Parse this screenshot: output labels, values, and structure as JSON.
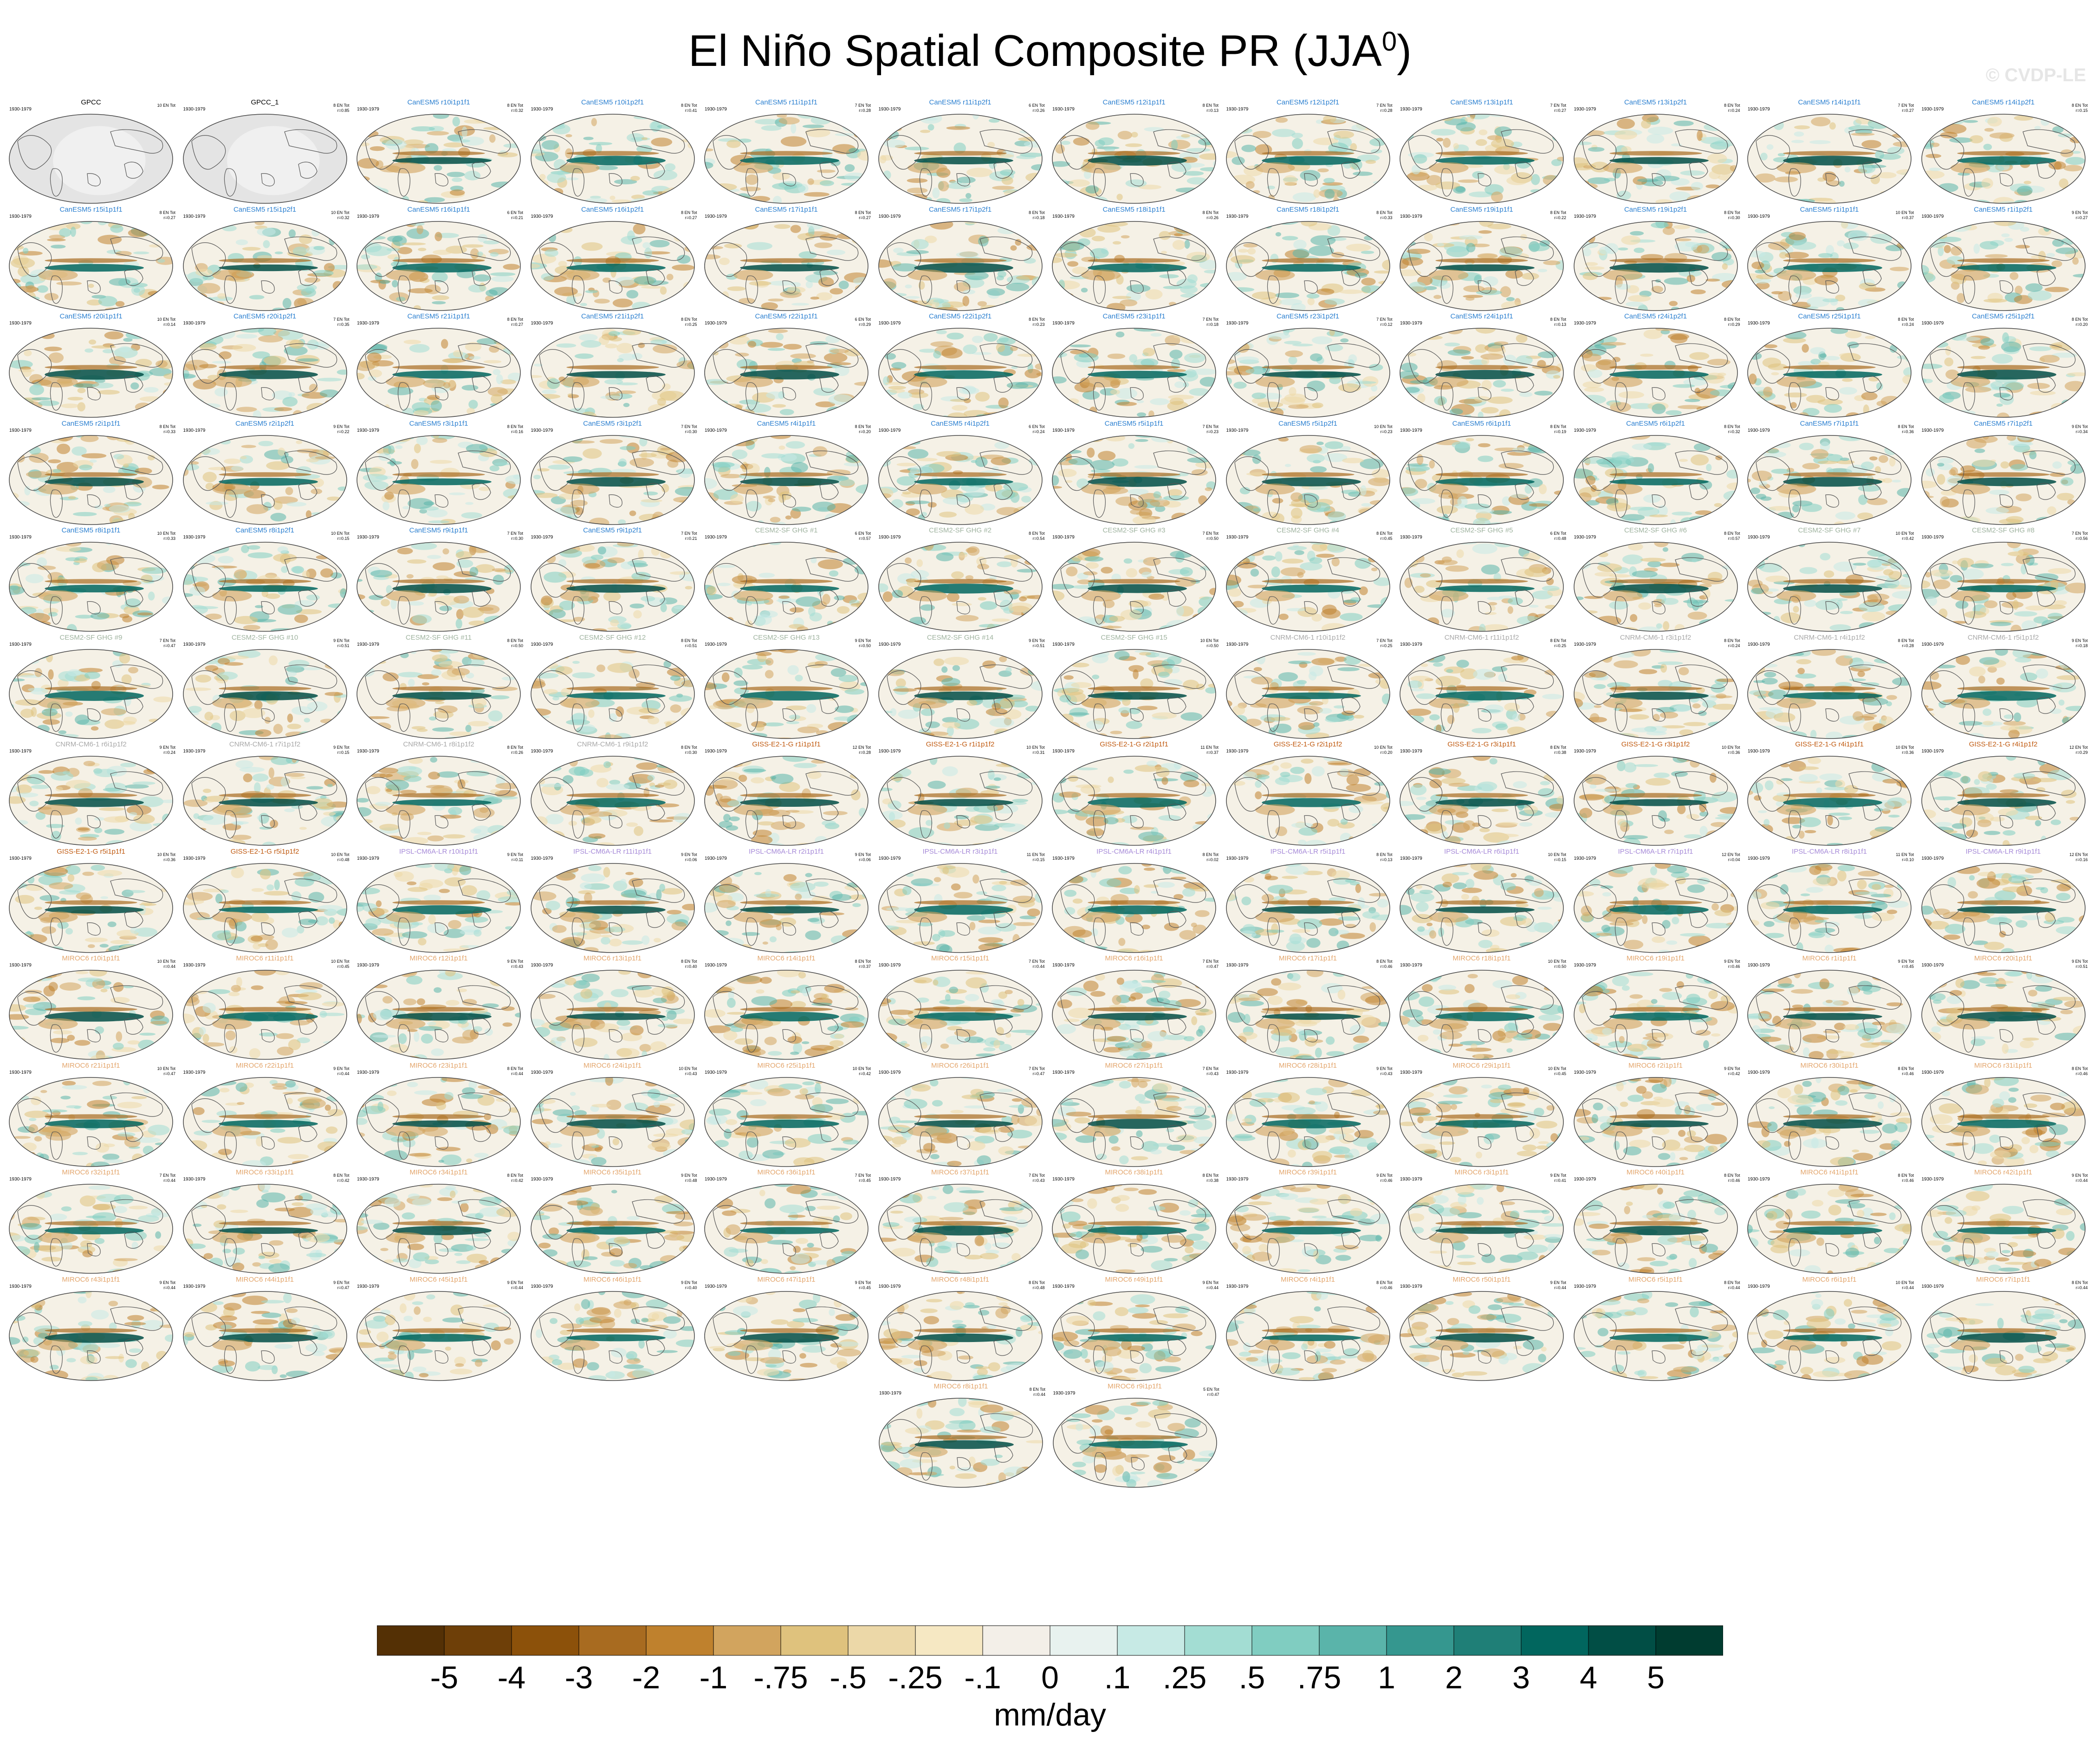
{
  "title": {
    "main": "El Niño Spatial Composite PR (JJA",
    "sup": "0",
    "close": ")"
  },
  "watermark": "© CVDP-LE",
  "period": "1930-1979",
  "colors": {
    "obs_title": "#000000",
    "CanESM5": "#2a7fd0",
    "CESM2-SF GHG": "#9fb39f",
    "CNRM-CM6-1": "#a8a8a8",
    "GISS-E2-1-G": "#c05a10",
    "IPSL-CM6A-LR": "#a68ad8",
    "MIROC6": "#e3a56b",
    "land_obs": "#e4e4e4",
    "ocean_bg": "#f5f1e6"
  },
  "panels": [
    {
      "title": "GPCC",
      "group": "obs",
      "stats": "10 EN Tot",
      "r": ""
    },
    {
      "title": "GPCC_1",
      "group": "obs",
      "stats": "8 EN Tot",
      "r": "r=0.85"
    },
    {
      "title": "CanESM5 r10i1p1f1",
      "group": "CanESM5",
      "stats": "8 EN Tot",
      "r": "r=0.32"
    },
    {
      "title": "CanESM5 r10i1p2f1",
      "group": "CanESM5",
      "stats": "8 EN Tot",
      "r": "r=0.41"
    },
    {
      "title": "CanESM5 r11i1p1f1",
      "group": "CanESM5",
      "stats": "7 EN Tot",
      "r": "r=0.28"
    },
    {
      "title": "CanESM5 r11i1p2f1",
      "group": "CanESM5",
      "stats": "6 EN Tot",
      "r": "r=0.26"
    },
    {
      "title": "CanESM5 r12i1p1f1",
      "group": "CanESM5",
      "stats": "8 EN Tot",
      "r": "r=0.13"
    },
    {
      "title": "CanESM5 r12i1p2f1",
      "group": "CanESM5",
      "stats": "7 EN Tot",
      "r": "r=0.28"
    },
    {
      "title": "CanESM5 r13i1p1f1",
      "group": "CanESM5",
      "stats": "7 EN Tot",
      "r": "r=0.27"
    },
    {
      "title": "CanESM5 r13i1p2f1",
      "group": "CanESM5",
      "stats": "8 EN Tot",
      "r": "r=0.24"
    },
    {
      "title": "CanESM5 r14i1p1f1",
      "group": "CanESM5",
      "stats": "7 EN Tot",
      "r": "r=0.27"
    },
    {
      "title": "CanESM5 r14i1p2f1",
      "group": "CanESM5",
      "stats": "8 EN Tot",
      "r": "r=0.15"
    },
    {
      "title": "CanESM5 r15i1p1f1",
      "group": "CanESM5",
      "stats": "8 EN Tot",
      "r": "r=0.27"
    },
    {
      "title": "CanESM5 r15i1p2f1",
      "group": "CanESM5",
      "stats": "10 EN Tot",
      "r": "r=0.32"
    },
    {
      "title": "CanESM5 r16i1p1f1",
      "group": "CanESM5",
      "stats": "6 EN Tot",
      "r": "r=0.21"
    },
    {
      "title": "CanESM5 r16i1p2f1",
      "group": "CanESM5",
      "stats": "8 EN Tot",
      "r": "r=0.27"
    },
    {
      "title": "CanESM5 r17i1p1f1",
      "group": "CanESM5",
      "stats": "8 EN Tot",
      "r": "r=0.27"
    },
    {
      "title": "CanESM5 r17i1p2f1",
      "group": "CanESM5",
      "stats": "8 EN Tot",
      "r": "r=0.18"
    },
    {
      "title": "CanESM5 r18i1p1f1",
      "group": "CanESM5",
      "stats": "8 EN Tot",
      "r": "r=0.26"
    },
    {
      "title": "CanESM5 r18i1p2f1",
      "group": "CanESM5",
      "stats": "8 EN Tot",
      "r": "r=0.33"
    },
    {
      "title": "CanESM5 r19i1p1f1",
      "group": "CanESM5",
      "stats": "8 EN Tot",
      "r": "r=0.22"
    },
    {
      "title": "CanESM5 r19i1p2f1",
      "group": "CanESM5",
      "stats": "8 EN Tot",
      "r": "r=0.30"
    },
    {
      "title": "CanESM5 r1i1p1f1",
      "group": "CanESM5",
      "stats": "10 EN Tot",
      "r": "r=0.37"
    },
    {
      "title": "CanESM5 r1i1p2f1",
      "group": "CanESM5",
      "stats": "9 EN Tot",
      "r": "r=0.27"
    },
    {
      "title": "CanESM5 r20i1p1f1",
      "group": "CanESM5",
      "stats": "10 EN Tot",
      "r": "r=0.14"
    },
    {
      "title": "CanESM5 r20i1p2f1",
      "group": "CanESM5",
      "stats": "7 EN Tot",
      "r": "r=0.35"
    },
    {
      "title": "CanESM5 r21i1p1f1",
      "group": "CanESM5",
      "stats": "8 EN Tot",
      "r": "r=0.27"
    },
    {
      "title": "CanESM5 r21i1p2f1",
      "group": "CanESM5",
      "stats": "8 EN Tot",
      "r": "r=0.25"
    },
    {
      "title": "CanESM5 r22i1p1f1",
      "group": "CanESM5",
      "stats": "6 EN Tot",
      "r": "r=0.29"
    },
    {
      "title": "CanESM5 r22i1p2f1",
      "group": "CanESM5",
      "stats": "8 EN Tot",
      "r": "r=0.23"
    },
    {
      "title": "CanESM5 r23i1p1f1",
      "group": "CanESM5",
      "stats": "7 EN Tot",
      "r": "r=0.18"
    },
    {
      "title": "CanESM5 r23i1p2f1",
      "group": "CanESM5",
      "stats": "7 EN Tot",
      "r": "r=0.12"
    },
    {
      "title": "CanESM5 r24i1p1f1",
      "group": "CanESM5",
      "stats": "8 EN Tot",
      "r": "r=0.13"
    },
    {
      "title": "CanESM5 r24i1p2f1",
      "group": "CanESM5",
      "stats": "8 EN Tot",
      "r": "r=0.29"
    },
    {
      "title": "CanESM5 r25i1p1f1",
      "group": "CanESM5",
      "stats": "8 EN Tot",
      "r": "r=0.24"
    },
    {
      "title": "CanESM5 r25i1p2f1",
      "group": "CanESM5",
      "stats": "8 EN Tot",
      "r": "r=0.20"
    },
    {
      "title": "CanESM5 r2i1p1f1",
      "group": "CanESM5",
      "stats": "8 EN Tot",
      "r": "r=0.33"
    },
    {
      "title": "CanESM5 r2i1p2f1",
      "group": "CanESM5",
      "stats": "9 EN Tot",
      "r": "r=0.22"
    },
    {
      "title": "CanESM5 r3i1p1f1",
      "group": "CanESM5",
      "stats": "8 EN Tot",
      "r": "r=0.16"
    },
    {
      "title": "CanESM5 r3i1p2f1",
      "group": "CanESM5",
      "stats": "7 EN Tot",
      "r": "r=0.30"
    },
    {
      "title": "CanESM5 r4i1p1f1",
      "group": "CanESM5",
      "stats": "8 EN Tot",
      "r": "r=0.20"
    },
    {
      "title": "CanESM5 r4i1p2f1",
      "group": "CanESM5",
      "stats": "6 EN Tot",
      "r": "r=0.24"
    },
    {
      "title": "CanESM5 r5i1p1f1",
      "group": "CanESM5",
      "stats": "7 EN Tot",
      "r": "r=0.23"
    },
    {
      "title": "CanESM5 r5i1p2f1",
      "group": "CanESM5",
      "stats": "10 EN Tot",
      "r": "r=0.23"
    },
    {
      "title": "CanESM5 r6i1p1f1",
      "group": "CanESM5",
      "stats": "8 EN Tot",
      "r": "r=0.19"
    },
    {
      "title": "CanESM5 r6i1p2f1",
      "group": "CanESM5",
      "stats": "8 EN Tot",
      "r": "r=0.32"
    },
    {
      "title": "CanESM5 r7i1p1f1",
      "group": "CanESM5",
      "stats": "8 EN Tot",
      "r": "r=0.36"
    },
    {
      "title": "CanESM5 r7i1p2f1",
      "group": "CanESM5",
      "stats": "9 EN Tot",
      "r": "r=0.34"
    },
    {
      "title": "CanESM5 r8i1p1f1",
      "group": "CanESM5",
      "stats": "10 EN Tot",
      "r": "r=0.33"
    },
    {
      "title": "CanESM5 r8i1p2f1",
      "group": "CanESM5",
      "stats": "10 EN Tot",
      "r": "r=0.15"
    },
    {
      "title": "CanESM5 r9i1p1f1",
      "group": "CanESM5",
      "stats": "7 EN Tot",
      "r": "r=0.30"
    },
    {
      "title": "CanESM5 r9i1p2f1",
      "group": "CanESM5",
      "stats": "7 EN Tot",
      "r": "r=0.21"
    },
    {
      "title": "CESM2-SF GHG #1",
      "group": "CESM2-SF GHG",
      "stats": "6 EN Tot",
      "r": "r=0.57"
    },
    {
      "title": "CESM2-SF GHG #2",
      "group": "CESM2-SF GHG",
      "stats": "8 EN Tot",
      "r": "r=0.54"
    },
    {
      "title": "CESM2-SF GHG #3",
      "group": "CESM2-SF GHG",
      "stats": "7 EN Tot",
      "r": "r=0.50"
    },
    {
      "title": "CESM2-SF GHG #4",
      "group": "CESM2-SF GHG",
      "stats": "8 EN Tot",
      "r": "r=0.45"
    },
    {
      "title": "CESM2-SF GHG #5",
      "group": "CESM2-SF GHG",
      "stats": "6 EN Tot",
      "r": "r=0.48"
    },
    {
      "title": "CESM2-SF GHG #6",
      "group": "CESM2-SF GHG",
      "stats": "8 EN Tot",
      "r": "r=0.57"
    },
    {
      "title": "CESM2-SF GHG #7",
      "group": "CESM2-SF GHG",
      "stats": "10 EN Tot",
      "r": "r=0.42"
    },
    {
      "title": "CESM2-SF GHG #8",
      "group": "CESM2-SF GHG",
      "stats": "7 EN Tot",
      "r": "r=0.56"
    },
    {
      "title": "CESM2-SF GHG #9",
      "group": "CESM2-SF GHG",
      "stats": "7 EN Tot",
      "r": "r=0.47"
    },
    {
      "title": "CESM2-SF GHG #10",
      "group": "CESM2-SF GHG",
      "stats": "9 EN Tot",
      "r": "r=0.51"
    },
    {
      "title": "CESM2-SF GHG #11",
      "group": "CESM2-SF GHG",
      "stats": "8 EN Tot",
      "r": "r=0.50"
    },
    {
      "title": "CESM2-SF GHG #12",
      "group": "CESM2-SF GHG",
      "stats": "8 EN Tot",
      "r": "r=0.51"
    },
    {
      "title": "CESM2-SF GHG #13",
      "group": "CESM2-SF GHG",
      "stats": "9 EN Tot",
      "r": "r=0.50"
    },
    {
      "title": "CESM2-SF GHG #14",
      "group": "CESM2-SF GHG",
      "stats": "9 EN Tot",
      "r": "r=0.51"
    },
    {
      "title": "CESM2-SF GHG #15",
      "group": "CESM2-SF GHG",
      "stats": "10 EN Tot",
      "r": "r=0.50"
    },
    {
      "title": "CNRM-CM6-1 r10i1p1f2",
      "group": "CNRM-CM6-1",
      "stats": "7 EN Tot",
      "r": "r=0.25"
    },
    {
      "title": "CNRM-CM6-1 r11i1p1f2",
      "group": "CNRM-CM6-1",
      "stats": "8 EN Tot",
      "r": "r=0.25"
    },
    {
      "title": "CNRM-CM6-1 r3i1p1f2",
      "group": "CNRM-CM6-1",
      "stats": "8 EN Tot",
      "r": "r=0.24"
    },
    {
      "title": "CNRM-CM6-1 r4i1p1f2",
      "group": "CNRM-CM6-1",
      "stats": "8 EN Tot",
      "r": "r=0.28"
    },
    {
      "title": "CNRM-CM6-1 r5i1p1f2",
      "group": "CNRM-CM6-1",
      "stats": "9 EN Tot",
      "r": "r=0.18"
    },
    {
      "title": "CNRM-CM6-1 r6i1p1f2",
      "group": "CNRM-CM6-1",
      "stats": "9 EN Tot",
      "r": "r=0.24"
    },
    {
      "title": "CNRM-CM6-1 r7i1p1f2",
      "group": "CNRM-CM6-1",
      "stats": "9 EN Tot",
      "r": "r=0.15"
    },
    {
      "title": "CNRM-CM6-1 r8i1p1f2",
      "group": "CNRM-CM6-1",
      "stats": "8 EN Tot",
      "r": "r=0.26"
    },
    {
      "title": "CNRM-CM6-1 r9i1p1f2",
      "group": "CNRM-CM6-1",
      "stats": "8 EN Tot",
      "r": "r=0.30"
    },
    {
      "title": "GISS-E2-1-G r1i1p1f1",
      "group": "GISS-E2-1-G",
      "stats": "12 EN Tot",
      "r": "r=0.28"
    },
    {
      "title": "GISS-E2-1-G r1i1p1f2",
      "group": "GISS-E2-1-G",
      "stats": "10 EN Tot",
      "r": "r=0.31"
    },
    {
      "title": "GISS-E2-1-G r2i1p1f1",
      "group": "GISS-E2-1-G",
      "stats": "11 EN Tot",
      "r": "r=0.37"
    },
    {
      "title": "GISS-E2-1-G r2i1p1f2",
      "group": "GISS-E2-1-G",
      "stats": "10 EN Tot",
      "r": "r=0.20"
    },
    {
      "title": "GISS-E2-1-G r3i1p1f1",
      "group": "GISS-E2-1-G",
      "stats": "8 EN Tot",
      "r": "r=0.38"
    },
    {
      "title": "GISS-E2-1-G r3i1p1f2",
      "group": "GISS-E2-1-G",
      "stats": "10 EN Tot",
      "r": "r=0.36"
    },
    {
      "title": "GISS-E2-1-G r4i1p1f1",
      "group": "GISS-E2-1-G",
      "stats": "10 EN Tot",
      "r": "r=0.36"
    },
    {
      "title": "GISS-E2-1-G r4i1p1f2",
      "group": "GISS-E2-1-G",
      "stats": "12 EN Tot",
      "r": "r=0.29"
    },
    {
      "title": "GISS-E2-1-G r5i1p1f1",
      "group": "GISS-E2-1-G",
      "stats": "10 EN Tot",
      "r": "r=0.36"
    },
    {
      "title": "GISS-E2-1-G r5i1p1f2",
      "group": "GISS-E2-1-G",
      "stats": "10 EN Tot",
      "r": "r=0.48"
    },
    {
      "title": "IPSL-CM6A-LR r10i1p1f1",
      "group": "IPSL-CM6A-LR",
      "stats": "9 EN Tot",
      "r": "r=0.11"
    },
    {
      "title": "IPSL-CM6A-LR r11i1p1f1",
      "group": "IPSL-CM6A-LR",
      "stats": "9 EN Tot",
      "r": "r=0.06"
    },
    {
      "title": "IPSL-CM6A-LR r2i1p1f1",
      "group": "IPSL-CM6A-LR",
      "stats": "9 EN Tot",
      "r": "r=0.06"
    },
    {
      "title": "IPSL-CM6A-LR r3i1p1f1",
      "group": "IPSL-CM6A-LR",
      "stats": "11 EN Tot",
      "r": "r=0.15"
    },
    {
      "title": "IPSL-CM6A-LR r4i1p1f1",
      "group": "IPSL-CM6A-LR",
      "stats": "8 EN Tot",
      "r": "r=0.02"
    },
    {
      "title": "IPSL-CM6A-LR r5i1p1f1",
      "group": "IPSL-CM6A-LR",
      "stats": "8 EN Tot",
      "r": "r=0.13"
    },
    {
      "title": "IPSL-CM6A-LR r6i1p1f1",
      "group": "IPSL-CM6A-LR",
      "stats": "10 EN Tot",
      "r": "r=0.15"
    },
    {
      "title": "IPSL-CM6A-LR r7i1p1f1",
      "group": "IPSL-CM6A-LR",
      "stats": "12 EN Tot",
      "r": "r=0.04"
    },
    {
      "title": "IPSL-CM6A-LR r8i1p1f1",
      "group": "IPSL-CM6A-LR",
      "stats": "11 EN Tot",
      "r": "r=0.10"
    },
    {
      "title": "IPSL-CM6A-LR r9i1p1f1",
      "group": "IPSL-CM6A-LR",
      "stats": "12 EN Tot",
      "r": "r=0.16"
    },
    {
      "title": "MIROC6 r10i1p1f1",
      "group": "MIROC6",
      "stats": "10 EN Tot",
      "r": "r=0.44"
    },
    {
      "title": "MIROC6 r11i1p1f1",
      "group": "MIROC6",
      "stats": "10 EN Tot",
      "r": "r=0.45"
    },
    {
      "title": "MIROC6 r12i1p1f1",
      "group": "MIROC6",
      "stats": "9 EN Tot",
      "r": "r=0.43"
    },
    {
      "title": "MIROC6 r13i1p1f1",
      "group": "MIROC6",
      "stats": "8 EN Tot",
      "r": "r=0.40"
    },
    {
      "title": "MIROC6 r14i1p1f1",
      "group": "MIROC6",
      "stats": "8 EN Tot",
      "r": "r=0.37"
    },
    {
      "title": "MIROC6 r15i1p1f1",
      "group": "MIROC6",
      "stats": "7 EN Tot",
      "r": "r=0.44"
    },
    {
      "title": "MIROC6 r16i1p1f1",
      "group": "MIROC6",
      "stats": "7 EN Tot",
      "r": "r=0.47"
    },
    {
      "title": "MIROC6 r17i1p1f1",
      "group": "MIROC6",
      "stats": "8 EN Tot",
      "r": "r=0.46"
    },
    {
      "title": "MIROC6 r18i1p1f1",
      "group": "MIROC6",
      "stats": "10 EN Tot",
      "r": "r=0.50"
    },
    {
      "title": "MIROC6 r19i1p1f1",
      "group": "MIROC6",
      "stats": "9 EN Tot",
      "r": "r=0.46"
    },
    {
      "title": "MIROC6 r1i1p1f1",
      "group": "MIROC6",
      "stats": "9 EN Tot",
      "r": "r=0.45"
    },
    {
      "title": "MIROC6 r20i1p1f1",
      "group": "MIROC6",
      "stats": "9 EN Tot",
      "r": "r=0.51"
    },
    {
      "title": "MIROC6 r21i1p1f1",
      "group": "MIROC6",
      "stats": "10 EN Tot",
      "r": "r=0.47"
    },
    {
      "title": "MIROC6 r22i1p1f1",
      "group": "MIROC6",
      "stats": "9 EN Tot",
      "r": "r=0.44"
    },
    {
      "title": "MIROC6 r23i1p1f1",
      "group": "MIROC6",
      "stats": "8 EN Tot",
      "r": "r=0.44"
    },
    {
      "title": "MIROC6 r24i1p1f1",
      "group": "MIROC6",
      "stats": "10 EN Tot",
      "r": "r=0.43"
    },
    {
      "title": "MIROC6 r25i1p1f1",
      "group": "MIROC6",
      "stats": "10 EN Tot",
      "r": "r=0.42"
    },
    {
      "title": "MIROC6 r26i1p1f1",
      "group": "MIROC6",
      "stats": "7 EN Tot",
      "r": "r=0.47"
    },
    {
      "title": "MIROC6 r27i1p1f1",
      "group": "MIROC6",
      "stats": "7 EN Tot",
      "r": "r=0.43"
    },
    {
      "title": "MIROC6 r28i1p1f1",
      "group": "MIROC6",
      "stats": "9 EN Tot",
      "r": "r=0.43"
    },
    {
      "title": "MIROC6 r29i1p1f1",
      "group": "MIROC6",
      "stats": "10 EN Tot",
      "r": "r=0.45"
    },
    {
      "title": "MIROC6 r2i1p1f1",
      "group": "MIROC6",
      "stats": "9 EN Tot",
      "r": "r=0.42"
    },
    {
      "title": "MIROC6 r30i1p1f1",
      "group": "MIROC6",
      "stats": "8 EN Tot",
      "r": "r=0.46"
    },
    {
      "title": "MIROC6 r31i1p1f1",
      "group": "MIROC6",
      "stats": "8 EN Tot",
      "r": "r=0.46"
    },
    {
      "title": "MIROC6 r32i1p1f1",
      "group": "MIROC6",
      "stats": "7 EN Tot",
      "r": "r=0.44"
    },
    {
      "title": "MIROC6 r33i1p1f1",
      "group": "MIROC6",
      "stats": "8 EN Tot",
      "r": "r=0.42"
    },
    {
      "title": "MIROC6 r34i1p1f1",
      "group": "MIROC6",
      "stats": "8 EN Tot",
      "r": "r=0.42"
    },
    {
      "title": "MIROC6 r35i1p1f1",
      "group": "MIROC6",
      "stats": "9 EN Tot",
      "r": "r=0.48"
    },
    {
      "title": "MIROC6 r36i1p1f1",
      "group": "MIROC6",
      "stats": "7 EN Tot",
      "r": "r=0.45"
    },
    {
      "title": "MIROC6 r37i1p1f1",
      "group": "MIROC6",
      "stats": "7 EN Tot",
      "r": "r=0.43"
    },
    {
      "title": "MIROC6 r38i1p1f1",
      "group": "MIROC6",
      "stats": "8 EN Tot",
      "r": "r=0.38"
    },
    {
      "title": "MIROC6 r39i1p1f1",
      "group": "MIROC6",
      "stats": "9 EN Tot",
      "r": "r=0.46"
    },
    {
      "title": "MIROC6 r3i1p1f1",
      "group": "MIROC6",
      "stats": "9 EN Tot",
      "r": "r=0.41"
    },
    {
      "title": "MIROC6 r40i1p1f1",
      "group": "MIROC6",
      "stats": "8 EN Tot",
      "r": "r=0.46"
    },
    {
      "title": "MIROC6 r41i1p1f1",
      "group": "MIROC6",
      "stats": "8 EN Tot",
      "r": "r=0.46"
    },
    {
      "title": "MIROC6 r42i1p1f1",
      "group": "MIROC6",
      "stats": "9 EN Tot",
      "r": "r=0.44"
    },
    {
      "title": "MIROC6 r43i1p1f1",
      "group": "MIROC6",
      "stats": "9 EN Tot",
      "r": "r=0.44"
    },
    {
      "title": "MIROC6 r44i1p1f1",
      "group": "MIROC6",
      "stats": "9 EN Tot",
      "r": "r=0.47"
    },
    {
      "title": "MIROC6 r45i1p1f1",
      "group": "MIROC6",
      "stats": "9 EN Tot",
      "r": "r=0.44"
    },
    {
      "title": "MIROC6 r46i1p1f1",
      "group": "MIROC6",
      "stats": "9 EN Tot",
      "r": "r=0.40"
    },
    {
      "title": "MIROC6 r47i1p1f1",
      "group": "MIROC6",
      "stats": "9 EN Tot",
      "r": "r=0.45"
    },
    {
      "title": "MIROC6 r48i1p1f1",
      "group": "MIROC6",
      "stats": "8 EN Tot",
      "r": "r=0.48"
    },
    {
      "title": "MIROC6 r49i1p1f1",
      "group": "MIROC6",
      "stats": "9 EN Tot",
      "r": "r=0.44"
    },
    {
      "title": "MIROC6 r4i1p1f1",
      "group": "MIROC6",
      "stats": "8 EN Tot",
      "r": "r=0.46"
    },
    {
      "title": "MIROC6 r50i1p1f1",
      "group": "MIROC6",
      "stats": "9 EN Tot",
      "r": "r=0.44"
    },
    {
      "title": "MIROC6 r5i1p1f1",
      "group": "MIROC6",
      "stats": "8 EN Tot",
      "r": "r=0.44"
    },
    {
      "title": "MIROC6 r6i1p1f1",
      "group": "MIROC6",
      "stats": "10 EN Tot",
      "r": "r=0.44"
    },
    {
      "title": "MIROC6 r7i1p1f1",
      "group": "MIROC6",
      "stats": "8 EN Tot",
      "r": "r=0.44"
    },
    {
      "title": "MIROC6 r8i1p1f1",
      "group": "MIROC6",
      "stats": "8 EN Tot",
      "r": "r=0.44"
    },
    {
      "title": "MIROC6 r9i1p1f1",
      "group": "MIROC6",
      "stats": "5 EN Tot",
      "r": "r=0.47"
    }
  ],
  "colorbar": {
    "labels": [
      "-5",
      "-4",
      "-3",
      "-2",
      "-1",
      "-.75",
      "-.5",
      "-.25",
      "-.1",
      "0",
      ".1",
      ".25",
      ".5",
      ".75",
      "1",
      "2",
      "3",
      "4",
      "5"
    ],
    "colors": [
      "#543005",
      "#6e3f08",
      "#8c510a",
      "#a86b20",
      "#bf812d",
      "#d2a45e",
      "#dfc27d",
      "#ecd8a8",
      "#f6e8c3",
      "#f3efe8",
      "#e8f2ef",
      "#c7eae5",
      "#a3ddd3",
      "#80cdc1",
      "#5ab4aa",
      "#35978f",
      "#1f7f77",
      "#01665e",
      "#014e45",
      "#003c30"
    ],
    "units": "mm/day"
  },
  "chart_data": {
    "type": "heatmap",
    "title": "El Niño Spatial Composite PR (JJA0)",
    "units": "mm/day",
    "projection": "global map panels",
    "contour_levels": [
      -5,
      -4,
      -3,
      -2,
      -1,
      -0.75,
      -0.5,
      -0.25,
      -0.1,
      0,
      0.1,
      0.25,
      0.5,
      0.75,
      1,
      2,
      3,
      4,
      5
    ],
    "panel_count": 146
  }
}
